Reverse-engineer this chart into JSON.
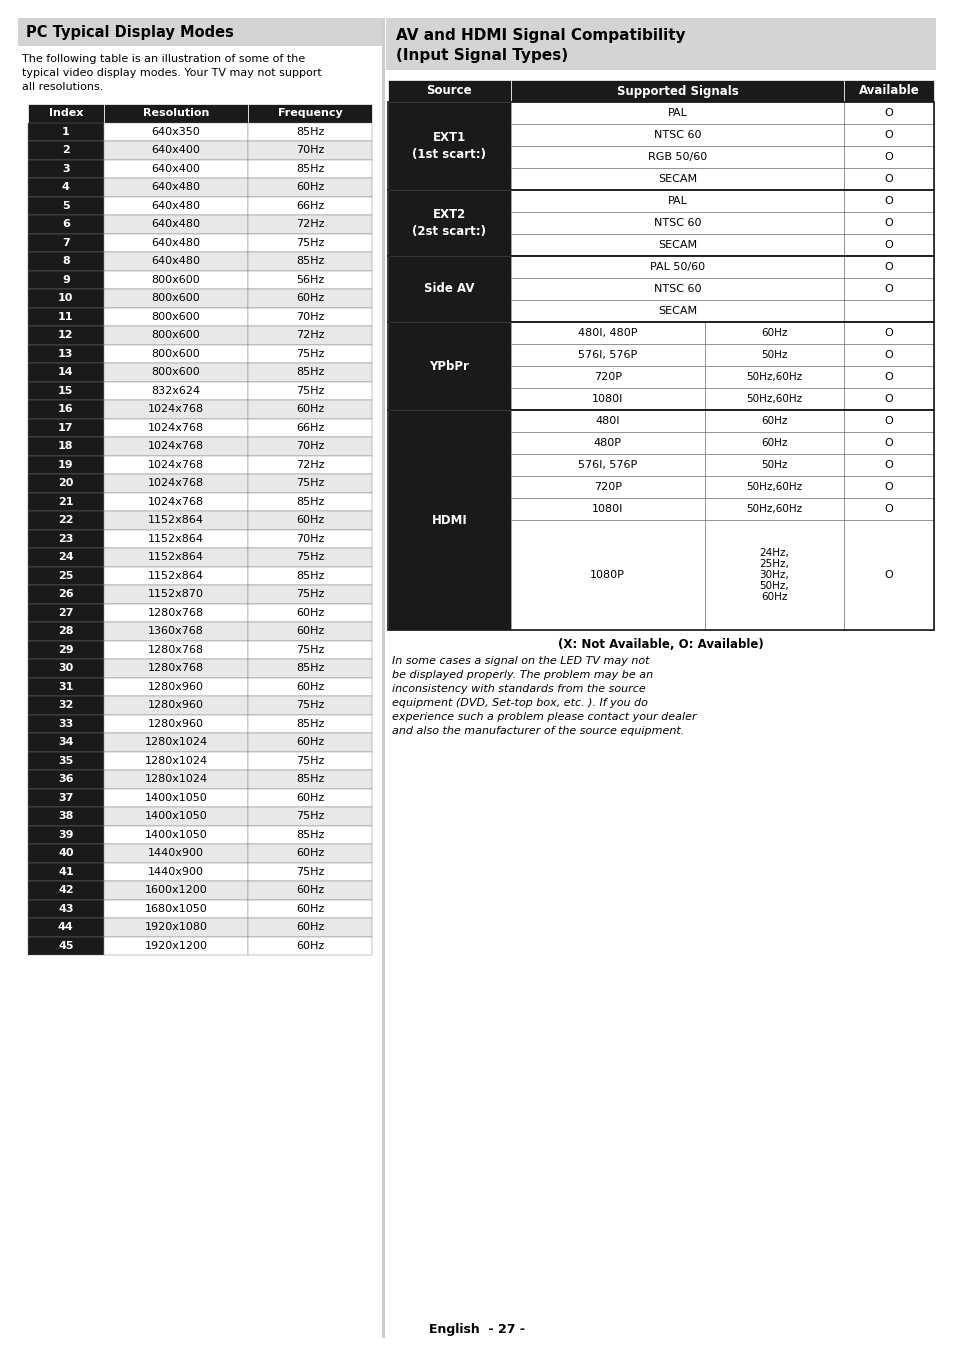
{
  "page_bg": "#ffffff",
  "left_title": "PC Typical Display Modes",
  "left_title_bg": "#d4d4d4",
  "left_intro": "The following table is an illustration of some of the typical video display modes. Your TV may not support all resolutions.",
  "pc_table_header": [
    "Index",
    "Resolution",
    "Frequency"
  ],
  "pc_table_data": [
    [
      "1",
      "640x350",
      "85Hz"
    ],
    [
      "2",
      "640x400",
      "70Hz"
    ],
    [
      "3",
      "640x400",
      "85Hz"
    ],
    [
      "4",
      "640x480",
      "60Hz"
    ],
    [
      "5",
      "640x480",
      "66Hz"
    ],
    [
      "6",
      "640x480",
      "72Hz"
    ],
    [
      "7",
      "640x480",
      "75Hz"
    ],
    [
      "8",
      "640x480",
      "85Hz"
    ],
    [
      "9",
      "800x600",
      "56Hz"
    ],
    [
      "10",
      "800x600",
      "60Hz"
    ],
    [
      "11",
      "800x600",
      "70Hz"
    ],
    [
      "12",
      "800x600",
      "72Hz"
    ],
    [
      "13",
      "800x600",
      "75Hz"
    ],
    [
      "14",
      "800x600",
      "85Hz"
    ],
    [
      "15",
      "832x624",
      "75Hz"
    ],
    [
      "16",
      "1024x768",
      "60Hz"
    ],
    [
      "17",
      "1024x768",
      "66Hz"
    ],
    [
      "18",
      "1024x768",
      "70Hz"
    ],
    [
      "19",
      "1024x768",
      "72Hz"
    ],
    [
      "20",
      "1024x768",
      "75Hz"
    ],
    [
      "21",
      "1024x768",
      "85Hz"
    ],
    [
      "22",
      "1152x864",
      "60Hz"
    ],
    [
      "23",
      "1152x864",
      "70Hz"
    ],
    [
      "24",
      "1152x864",
      "75Hz"
    ],
    [
      "25",
      "1152x864",
      "85Hz"
    ],
    [
      "26",
      "1152x870",
      "75Hz"
    ],
    [
      "27",
      "1280x768",
      "60Hz"
    ],
    [
      "28",
      "1360x768",
      "60Hz"
    ],
    [
      "29",
      "1280x768",
      "75Hz"
    ],
    [
      "30",
      "1280x768",
      "85Hz"
    ],
    [
      "31",
      "1280x960",
      "60Hz"
    ],
    [
      "32",
      "1280x960",
      "75Hz"
    ],
    [
      "33",
      "1280x960",
      "85Hz"
    ],
    [
      "34",
      "1280x1024",
      "60Hz"
    ],
    [
      "35",
      "1280x1024",
      "75Hz"
    ],
    [
      "36",
      "1280x1024",
      "85Hz"
    ],
    [
      "37",
      "1400x1050",
      "60Hz"
    ],
    [
      "38",
      "1400x1050",
      "75Hz"
    ],
    [
      "39",
      "1400x1050",
      "85Hz"
    ],
    [
      "40",
      "1440x900",
      "60Hz"
    ],
    [
      "41",
      "1440x900",
      "75Hz"
    ],
    [
      "42",
      "1600x1200",
      "60Hz"
    ],
    [
      "43",
      "1680x1050",
      "60Hz"
    ],
    [
      "44",
      "1920x1080",
      "60Hz"
    ],
    [
      "45",
      "1920x1200",
      "60Hz"
    ]
  ],
  "right_title_line1": "AV and HDMI Signal Compatibility",
  "right_title_line2": "(Input Signal Types)",
  "right_title_bg": "#d4d4d4",
  "av_table_data": [
    {
      "source": "EXT1\n(1st scart:)",
      "n_rows": 4,
      "signals": [
        {
          "name": "PAL",
          "freq": "",
          "avail": "O"
        },
        {
          "name": "NTSC 60",
          "freq": "",
          "avail": "O"
        },
        {
          "name": "RGB 50/60",
          "freq": "",
          "avail": "O"
        },
        {
          "name": "SECAM",
          "freq": "",
          "avail": "O"
        }
      ]
    },
    {
      "source": "EXT2\n(2st scart:)",
      "n_rows": 3,
      "signals": [
        {
          "name": "PAL",
          "freq": "",
          "avail": "O"
        },
        {
          "name": "NTSC 60",
          "freq": "",
          "avail": "O"
        },
        {
          "name": "SECAM",
          "freq": "",
          "avail": "O"
        }
      ]
    },
    {
      "source": "Side AV",
      "n_rows": 3,
      "signals": [
        {
          "name": "PAL 50/60",
          "freq": "",
          "avail": "O"
        },
        {
          "name": "NTSC 60",
          "freq": "",
          "avail": "O"
        },
        {
          "name": "SECAM",
          "freq": "",
          "avail": ""
        }
      ]
    },
    {
      "source": "YPbPr",
      "n_rows": 4,
      "signals": [
        {
          "name": "480I, 480P",
          "freq": "60Hz",
          "avail": "O"
        },
        {
          "name": "576I, 576P",
          "freq": "50Hz",
          "avail": "O"
        },
        {
          "name": "720P",
          "freq": "50Hz,60Hz",
          "avail": "O"
        },
        {
          "name": "1080I",
          "freq": "50Hz,60Hz",
          "avail": "O"
        }
      ]
    },
    {
      "source": "HDMI",
      "n_rows": 6,
      "signals": [
        {
          "name": "480I",
          "freq": "60Hz",
          "avail": "O"
        },
        {
          "name": "480P",
          "freq": "60Hz",
          "avail": "O"
        },
        {
          "name": "576I, 576P",
          "freq": "50Hz",
          "avail": "O"
        },
        {
          "name": "720P",
          "freq": "50Hz,60Hz",
          "avail": "O"
        },
        {
          "name": "1080I",
          "freq": "50Hz,60Hz",
          "avail": "O"
        },
        {
          "name": "1080P",
          "freq": "24Hz,\n25Hz,\n30Hz,\n50Hz,\n60Hz",
          "avail": "O",
          "tall": true
        }
      ]
    }
  ],
  "note_bold": "(X: Not Available, O: Available)",
  "note_italic": "In some cases a signal on the LED TV may not be displayed properly. The problem may be an inconsistency with standards from the source equipment (DVD, Set-top box, etc. ). If you do experience such a problem please contact your dealer and also the manufacturer of the source equipment.",
  "footer": "English  - 27 -",
  "dark_bg": "#1a1a1a",
  "white": "#ffffff",
  "light_gray": "#e8e8e8",
  "mid_gray": "#d4d4d4",
  "border_color": "#333333",
  "text_black": "#000000"
}
